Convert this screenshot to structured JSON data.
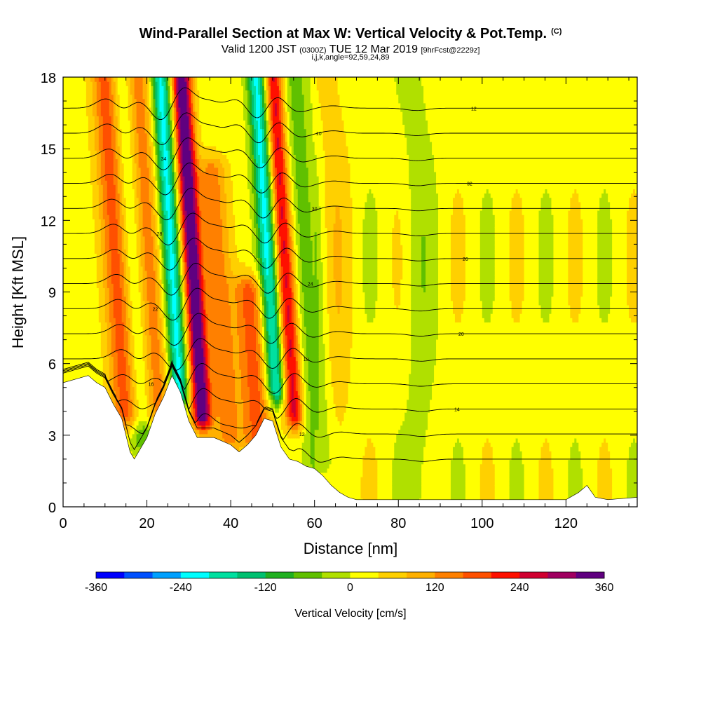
{
  "title": {
    "main": "Wind-Parallel Section at Max W: Vertical Velocity & Pot.Temp.",
    "copyright": "(C)",
    "valid_prefix": "Valid 1200 JST",
    "valid_utc": "(0300Z)",
    "valid_date": "TUE 12 Mar 2019",
    "forecast": "[9hrFcst@2229z]",
    "indices": "i,j,k,angle=92,59,24,89"
  },
  "colors": {
    "terrain": "#ffffff",
    "contour": "#000000",
    "scale": [
      "#0000ff",
      "#0050ff",
      "#00a0ff",
      "#00ffff",
      "#00e0a0",
      "#00c070",
      "#20b020",
      "#60c000",
      "#b0e000",
      "#ffff00",
      "#ffd000",
      "#ffb000",
      "#ff8000",
      "#ff5000",
      "#ff1000",
      "#d00030",
      "#a00060",
      "#600080"
    ]
  },
  "chart_data": {
    "type": "heatmap",
    "xlabel": "Distance [nm]",
    "ylabel": "Height [Kft MSL]",
    "xlim": [
      0,
      137
    ],
    "ylim": [
      0,
      18
    ],
    "xticks": [
      "0",
      "20",
      "40",
      "60",
      "80",
      "100",
      "120"
    ],
    "yticks": [
      "0",
      "3",
      "6",
      "9",
      "12",
      "15",
      "18"
    ],
    "colorbar": {
      "label": "Vertical Velocity [cm/s]",
      "min": -360,
      "max": 360,
      "step": 40,
      "tick_labels": [
        "-360",
        "-240",
        "-120",
        "0",
        "120",
        "240",
        "360"
      ]
    },
    "terrain_profile": {
      "x": [
        0,
        6,
        8,
        10,
        12,
        14,
        16,
        17,
        18,
        20,
        22,
        24,
        26,
        28,
        30,
        32,
        36,
        40,
        42,
        44,
        46,
        48,
        50,
        52,
        54,
        56,
        58,
        60,
        62,
        64,
        66,
        68,
        70,
        80,
        90,
        100,
        110,
        120,
        123,
        125,
        127,
        130,
        137
      ],
      "kft": [
        5.2,
        5.5,
        5.2,
        5.0,
        4.3,
        3.7,
        2.3,
        2.0,
        2.3,
        2.9,
        3.9,
        4.6,
        5.5,
        4.8,
        3.6,
        2.9,
        2.9,
        2.6,
        2.3,
        2.6,
        3.0,
        3.7,
        3.6,
        2.5,
        2.0,
        1.9,
        1.7,
        1.6,
        1.3,
        0.9,
        0.6,
        0.4,
        0.3,
        0.3,
        0.3,
        0.3,
        0.3,
        0.3,
        0.6,
        0.9,
        0.4,
        0.3,
        0.4
      ]
    },
    "vertical_velocity_features": [
      {
        "x": 13,
        "kft_range": [
          4,
          18
        ],
        "cm_s": 180
      },
      {
        "x": 17,
        "kft_range": [
          3,
          18
        ],
        "cm_s": -120
      },
      {
        "x": 20,
        "kft_range": [
          4,
          18
        ],
        "cm_s": 160
      },
      {
        "x": 26,
        "kft_range": [
          5,
          18
        ],
        "cm_s": -240
      },
      {
        "x": 31,
        "kft_range": [
          4,
          18
        ],
        "cm_s": 360
      },
      {
        "x": 37,
        "kft_range": [
          3,
          14
        ],
        "cm_s": 120
      },
      {
        "x": 44,
        "kft_range": [
          3,
          9
        ],
        "cm_s": 160
      },
      {
        "x": 49,
        "kft_range": [
          5,
          18
        ],
        "cm_s": -240
      },
      {
        "x": 53,
        "kft_range": [
          4,
          18
        ],
        "cm_s": 240
      },
      {
        "x": 58,
        "kft_range": [
          2,
          18
        ],
        "cm_s": -80
      },
      {
        "x": 65,
        "kft_range": [
          1,
          18
        ],
        "cm_s": 40
      },
      {
        "x": 85,
        "kft_range": [
          0.3,
          18
        ],
        "cm_s": -40
      }
    ],
    "theta_contour_labels": [
      "10",
      "12",
      "14",
      "16",
      "18",
      "20",
      "22",
      "24",
      "26",
      "28",
      "30",
      "32",
      "34"
    ]
  }
}
